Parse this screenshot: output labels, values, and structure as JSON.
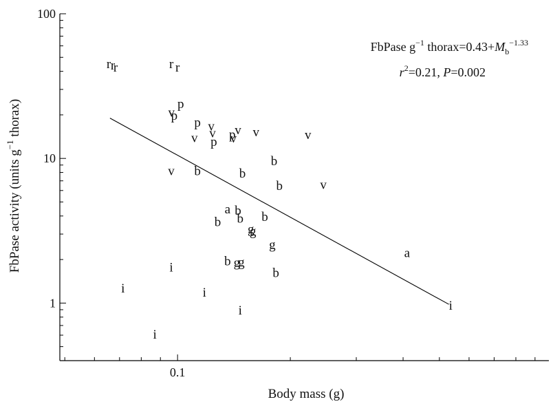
{
  "chart_data": {
    "type": "scatter",
    "title": "",
    "xlabel": "Body mass (g)",
    "ylabel": "FbPase activity (units g",
    "ylabel_sup": "−1",
    "ylabel_end": " thorax)",
    "x_scale": "log",
    "y_scale": "log",
    "xlim": [
      0.0485,
      0.98
    ],
    "ylim": [
      0.4,
      100
    ],
    "y_ticks": [
      {
        "value": 1,
        "label": "1"
      },
      {
        "value": 10,
        "label": "10"
      },
      {
        "value": 100,
        "label": "100"
      }
    ],
    "x_ticks": [
      {
        "value": 0.1,
        "label": "0.1"
      }
    ],
    "x_minor_ticks": [
      0.05,
      0.06,
      0.07,
      0.08,
      0.09,
      0.2,
      0.3,
      0.4,
      0.5,
      0.6,
      0.7,
      0.8,
      0.9
    ],
    "grid": false,
    "annotation": {
      "line1_a": "FbPase g",
      "line1_sup1": "−1",
      "line1_b": " thorax=0.43+",
      "line1_M": "M",
      "line1_sub": "b",
      "line1_sup2": "−1.33",
      "line2_r": "r",
      "line2_sup": "2",
      "line2_b": "=0.21, ",
      "line2_P": "P",
      "line2_c": "=0.002"
    },
    "fit_line": {
      "x": [
        0.066,
        0.53
      ],
      "y": [
        19,
        0.98
      ]
    },
    "points": [
      {
        "label": "r",
        "x": 0.0655,
        "y": 44.5
      },
      {
        "label": "r",
        "x": 0.0672,
        "y": 43.5
      },
      {
        "label": "r",
        "x": 0.0683,
        "y": 42.2
      },
      {
        "label": "r",
        "x": 0.0963,
        "y": 44.5
      },
      {
        "label": "r",
        "x": 0.1,
        "y": 42.2
      },
      {
        "label": "p",
        "x": 0.102,
        "y": 23.5
      },
      {
        "label": "v",
        "x": 0.0963,
        "y": 20.5
      },
      {
        "label": "p",
        "x": 0.098,
        "y": 19.5
      },
      {
        "label": "p",
        "x": 0.113,
        "y": 17.5
      },
      {
        "label": "v",
        "x": 0.123,
        "y": 16.5
      },
      {
        "label": "v",
        "x": 0.124,
        "y": 14.8
      },
      {
        "label": "v",
        "x": 0.111,
        "y": 13.7
      },
      {
        "label": "p",
        "x": 0.125,
        "y": 12.9
      },
      {
        "label": "v",
        "x": 0.145,
        "y": 15.5
      },
      {
        "label": "p",
        "x": 0.14,
        "y": 14.5
      },
      {
        "label": "v",
        "x": 0.141,
        "y": 13.6
      },
      {
        "label": "v",
        "x": 0.162,
        "y": 15.0
      },
      {
        "label": "v",
        "x": 0.223,
        "y": 14.4
      },
      {
        "label": "v",
        "x": 0.0962,
        "y": 8.1
      },
      {
        "label": "b",
        "x": 0.113,
        "y": 8.1
      },
      {
        "label": "b",
        "x": 0.149,
        "y": 7.8
      },
      {
        "label": "b",
        "x": 0.181,
        "y": 9.5
      },
      {
        "label": "b",
        "x": 0.187,
        "y": 6.4
      },
      {
        "label": "v",
        "x": 0.245,
        "y": 6.5
      },
      {
        "label": "a",
        "x": 0.136,
        "y": 4.4
      },
      {
        "label": "b",
        "x": 0.145,
        "y": 4.3
      },
      {
        "label": "b",
        "x": 0.128,
        "y": 3.6
      },
      {
        "label": "b",
        "x": 0.147,
        "y": 3.8
      },
      {
        "label": "b",
        "x": 0.171,
        "y": 3.9
      },
      {
        "label": "g",
        "x": 0.157,
        "y": 3.2
      },
      {
        "label": "g",
        "x": 0.159,
        "y": 3.1
      },
      {
        "label": "g",
        "x": 0.179,
        "y": 2.5
      },
      {
        "label": "a",
        "x": 0.41,
        "y": 2.2
      },
      {
        "label": "b",
        "x": 0.136,
        "y": 1.93
      },
      {
        "label": "g",
        "x": 0.144,
        "y": 1.88
      },
      {
        "label": "g",
        "x": 0.148,
        "y": 1.9
      },
      {
        "label": "b",
        "x": 0.183,
        "y": 1.6
      },
      {
        "label": "i",
        "x": 0.0962,
        "y": 1.75
      },
      {
        "label": "i",
        "x": 0.0715,
        "y": 1.25
      },
      {
        "label": "i",
        "x": 0.118,
        "y": 1.17
      },
      {
        "label": "i",
        "x": 0.147,
        "y": 0.88
      },
      {
        "label": "i",
        "x": 0.087,
        "y": 0.6
      },
      {
        "label": "i",
        "x": 0.536,
        "y": 0.95
      }
    ]
  }
}
